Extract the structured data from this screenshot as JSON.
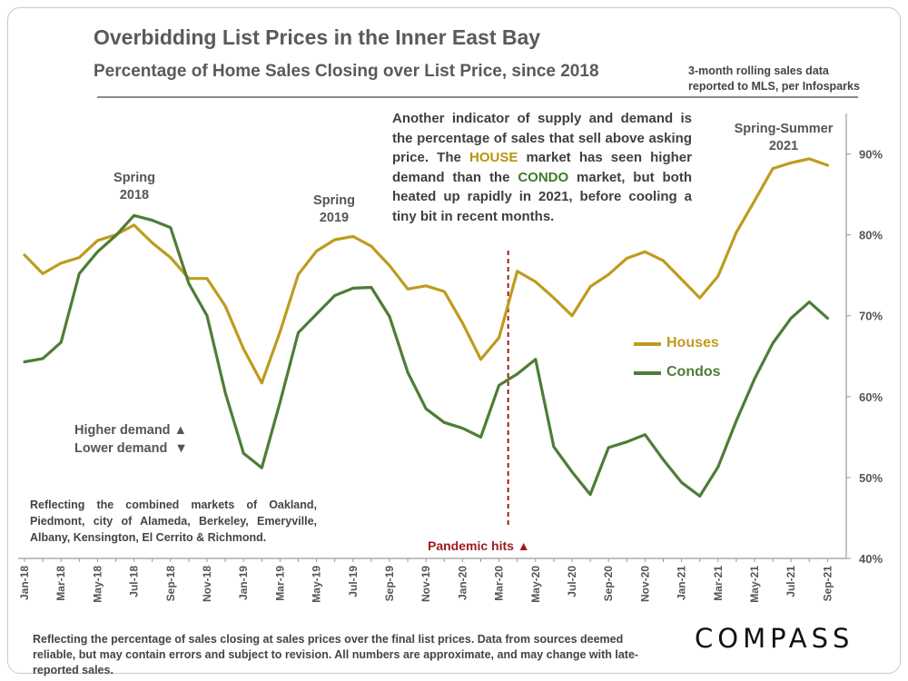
{
  "header": {
    "title": "Overbidding List Prices in the Inner East Bay",
    "subtitle": "Percentage of  Home Sales Closing over List Price, since 2018",
    "source_line1": "3-month rolling sales data",
    "source_line2": "reported to MLS, per Infosparks"
  },
  "annotations": {
    "spring2018_l1": "Spring",
    "spring2018_l2": "2018",
    "spring2019_l1": "Spring",
    "spring2019_l2": "2019",
    "spring2021_l1": "Spring-Summer",
    "spring2021_l2": "2021",
    "note_p1": "Another indicator of supply and demand is the percentage of sales that sell above asking price. The ",
    "note_house": "HOUSE",
    "note_p2": " market has seen higher demand than the ",
    "note_condo": "CONDO",
    "note_p3": " market, but both heated up rapidly in 2021, before cooling a tiny bit in recent months.",
    "higher_demand": "Higher demand ▲",
    "lower_demand": "Lower demand  ▼",
    "reflecting": "Reflecting the combined markets of Oakland, Piedmont, city of Alameda, Berkeley, Emeryville, Albany, Kensington, El Cerrito & Richmond.",
    "pandemic": "Pandemic hits ▲"
  },
  "footer": {
    "disclaimer": "Reflecting the percentage of sales closing at sales prices over the final list prices. Data from sources deemed reliable, but may contain errors and subject to revision. All numbers are approximate, and may change with late-reported sales.",
    "logo": "COMPASS"
  },
  "chart_data": {
    "type": "line",
    "title": "Overbidding List Prices in the Inner East Bay",
    "ylabel": "Percentage of Home Sales Closing over List Price",
    "ylim": [
      40,
      95
    ],
    "y_ticks": [
      40,
      50,
      60,
      70,
      80,
      90
    ],
    "y_tick_labels": [
      "40%",
      "50%",
      "60%",
      "70%",
      "80%",
      "90%"
    ],
    "x_tick_labels": [
      "Jan-18",
      "Mar-18",
      "May-18",
      "Jul-18",
      "Sep-18",
      "Nov-18",
      "Jan-19",
      "Mar-19",
      "May-19",
      "Jul-19",
      "Sep-19",
      "Nov-19",
      "Jan-20",
      "Mar-20",
      "May-20",
      "Jul-20",
      "Sep-20",
      "Nov-20",
      "Jan-21",
      "Mar-21",
      "May-21",
      "Jul-21",
      "Sep-21"
    ],
    "event_marker": {
      "label": "Pandemic hits",
      "x_index": 26.5
    },
    "series": [
      {
        "name": "Houses",
        "color": "#bf9b1e",
        "values": [
          77.5,
          75.2,
          76.5,
          77.2,
          79.3,
          80.0,
          81.2,
          79.0,
          77.2,
          74.6,
          74.6,
          71.2,
          65.9,
          61.7,
          68.0,
          75.1,
          78.0,
          79.4,
          79.8,
          78.6,
          76.2,
          73.3,
          73.7,
          73.0,
          69.1,
          64.6,
          67.3,
          75.5,
          74.2,
          72.2,
          70.0,
          73.6,
          75.1,
          77.1,
          77.9,
          76.8,
          74.5,
          72.2,
          74.9,
          80.3,
          84.2,
          88.2,
          88.9,
          89.4,
          88.6
        ]
      },
      {
        "name": "Condos",
        "color": "#4e7d36",
        "values": [
          64.3,
          64.7,
          66.7,
          75.2,
          77.9,
          79.9,
          82.4,
          81.8,
          80.9,
          74.0,
          70.0,
          60.5,
          53.0,
          51.2,
          59.3,
          67.9,
          70.2,
          72.5,
          73.4,
          73.5,
          69.9,
          63.0,
          58.5,
          56.8,
          56.1,
          55.0,
          61.4,
          62.8,
          64.6,
          53.8,
          50.7,
          47.9,
          53.7,
          54.4,
          55.3,
          52.2,
          49.4,
          47.7,
          51.3,
          57.0,
          62.2,
          66.6,
          69.7,
          71.7,
          69.7
        ]
      }
    ]
  }
}
